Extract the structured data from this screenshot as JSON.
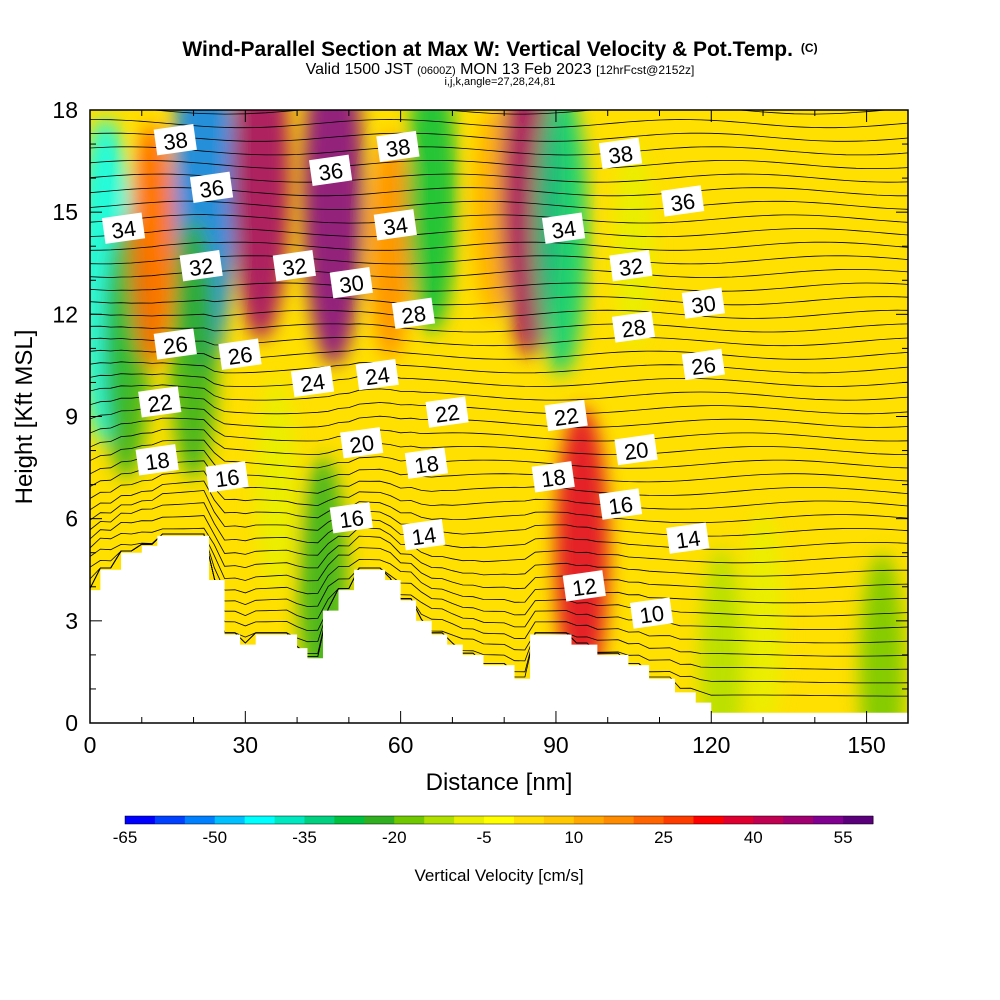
{
  "header": {
    "title": "Wind-Parallel Section at Max W: Vertical Velocity & Pot.Temp.",
    "copyright": "(C)",
    "valid_prefix": "Valid 1500 JST",
    "valid_utc": "(0600Z)",
    "valid_date": "MON 13 Feb 2023",
    "forecast": "[12hrFcst@2152z]",
    "index_line": "i,j,k,angle=27,28,24,81"
  },
  "chart_data": {
    "type": "heatmap",
    "xlabel": "Distance [nm]",
    "ylabel": "Height [Kft MSL]",
    "xlim": [
      0,
      158
    ],
    "ylim": [
      0,
      18
    ],
    "x_ticks": [
      0,
      30,
      60,
      90,
      120,
      150
    ],
    "y_ticks": [
      0,
      3,
      6,
      9,
      12,
      15,
      18
    ],
    "grid": false,
    "colorbar": {
      "label": "Vertical Velocity [cm/s]",
      "tick_labels": [
        "-65",
        "-50",
        "-35",
        "-20",
        "-5",
        "10",
        "25",
        "40",
        "55"
      ],
      "range": [
        -65,
        60
      ],
      "step": 5,
      "colors": [
        "#0000ff",
        "#0040ff",
        "#0080ff",
        "#00c0ff",
        "#00ffff",
        "#00e8c0",
        "#00d080",
        "#00c040",
        "#30b020",
        "#70c800",
        "#b0e000",
        "#e8f000",
        "#ffff00",
        "#ffe000",
        "#ffc800",
        "#ffa800",
        "#ff8c00",
        "#ff6400",
        "#ff3c00",
        "#ff0000",
        "#e00030",
        "#c00050",
        "#a00070",
        "#800090",
        "#5a007a"
      ]
    },
    "terrain_profile": [
      [
        0,
        3.9
      ],
      [
        2,
        3.9
      ],
      [
        2,
        4.5
      ],
      [
        6,
        4.5
      ],
      [
        6,
        5
      ],
      [
        10,
        5
      ],
      [
        10,
        5.2
      ],
      [
        13,
        5.2
      ],
      [
        13,
        5.5
      ],
      [
        23,
        5.5
      ],
      [
        23,
        4.2
      ],
      [
        26,
        4.2
      ],
      [
        26,
        2.6
      ],
      [
        29,
        2.6
      ],
      [
        29,
        2.3
      ],
      [
        32,
        2.3
      ],
      [
        32,
        2.6
      ],
      [
        40,
        2.6
      ],
      [
        40,
        2.2
      ],
      [
        42,
        2.2
      ],
      [
        42,
        1.9
      ],
      [
        45,
        1.9
      ],
      [
        45,
        3.3
      ],
      [
        48,
        3.3
      ],
      [
        48,
        3.9
      ],
      [
        51,
        3.9
      ],
      [
        51,
        4.5
      ],
      [
        57,
        4.5
      ],
      [
        57,
        4.2
      ],
      [
        60,
        4.2
      ],
      [
        60,
        3.6
      ],
      [
        63,
        3.6
      ],
      [
        63,
        3.0
      ],
      [
        66,
        3.0
      ],
      [
        66,
        2.6
      ],
      [
        69,
        2.6
      ],
      [
        69,
        2.3
      ],
      [
        72,
        2.3
      ],
      [
        72,
        2.0
      ],
      [
        76,
        2.0
      ],
      [
        76,
        1.7
      ],
      [
        82,
        1.7
      ],
      [
        82,
        1.3
      ],
      [
        85,
        1.3
      ],
      [
        85,
        2.6
      ],
      [
        93,
        2.6
      ],
      [
        93,
        2.3
      ],
      [
        98,
        2.3
      ],
      [
        98,
        2.0
      ],
      [
        104,
        2.0
      ],
      [
        104,
        1.7
      ],
      [
        108,
        1.7
      ],
      [
        108,
        1.3
      ],
      [
        113,
        1.3
      ],
      [
        113,
        0.9
      ],
      [
        117,
        0.9
      ],
      [
        117,
        0.6
      ],
      [
        120,
        0.6
      ],
      [
        120,
        0.3
      ],
      [
        158,
        0.3
      ]
    ],
    "series": [
      {
        "name": "Vertical Velocity [cm/s]",
        "type": "heatmap",
        "features": [
          {
            "x": 3,
            "y": 13,
            "value": -45
          },
          {
            "x": 7,
            "y": 11,
            "value": -25
          },
          {
            "x": 22,
            "y": 15.5,
            "value": -55
          },
          {
            "x": 20,
            "y": 11,
            "value": -25
          },
          {
            "x": 12,
            "y": 14,
            "value": 20
          },
          {
            "x": 33,
            "y": 16,
            "value": 45
          },
          {
            "x": 47,
            "y": 15.5,
            "value": 50
          },
          {
            "x": 58,
            "y": 14,
            "value": 15
          },
          {
            "x": 66,
            "y": 15.5,
            "value": -30
          },
          {
            "x": 78,
            "y": 15,
            "value": 10
          },
          {
            "x": 85,
            "y": 15.5,
            "value": 45
          },
          {
            "x": 91,
            "y": 14.5,
            "value": -35
          },
          {
            "x": 95,
            "y": 5,
            "value": 35
          },
          {
            "x": 45,
            "y": 4,
            "value": -25
          },
          {
            "x": 36,
            "y": 7,
            "value": -10
          },
          {
            "x": 105,
            "y": 14,
            "value": -8
          },
          {
            "x": 130,
            "y": 3,
            "value": -12
          },
          {
            "x": 122,
            "y": 1.8,
            "value": -15
          },
          {
            "x": 153,
            "y": 1.5,
            "value": -18
          }
        ]
      }
    ],
    "contour_labels": [
      {
        "text": "38",
        "x": 16.5,
        "y": 17.1
      },
      {
        "text": "38",
        "x": 59.5,
        "y": 16.9
      },
      {
        "text": "38",
        "x": 102.5,
        "y": 16.7
      },
      {
        "text": "36",
        "x": 23.5,
        "y": 15.7
      },
      {
        "text": "36",
        "x": 46.5,
        "y": 16.2
      },
      {
        "text": "36",
        "x": 114.5,
        "y": 15.3
      },
      {
        "text": "34",
        "x": 6.5,
        "y": 14.5
      },
      {
        "text": "34",
        "x": 59,
        "y": 14.6
      },
      {
        "text": "34",
        "x": 91.5,
        "y": 14.5
      },
      {
        "text": "32",
        "x": 21.5,
        "y": 13.4
      },
      {
        "text": "32",
        "x": 39.5,
        "y": 13.4
      },
      {
        "text": "32",
        "x": 104.5,
        "y": 13.4
      },
      {
        "text": "30",
        "x": 50.5,
        "y": 12.9
      },
      {
        "text": "30",
        "x": 118.5,
        "y": 12.3
      },
      {
        "text": "28",
        "x": 62.5,
        "y": 12.0
      },
      {
        "text": "28",
        "x": 105,
        "y": 11.6
      },
      {
        "text": "26",
        "x": 16.5,
        "y": 11.1
      },
      {
        "text": "26",
        "x": 29,
        "y": 10.8
      },
      {
        "text": "26",
        "x": 118.5,
        "y": 10.5
      },
      {
        "text": "24",
        "x": 43,
        "y": 10.0
      },
      {
        "text": "24",
        "x": 55.5,
        "y": 10.2
      },
      {
        "text": "22",
        "x": 13.5,
        "y": 9.4
      },
      {
        "text": "22",
        "x": 69,
        "y": 9.1
      },
      {
        "text": "22",
        "x": 92,
        "y": 9.0
      },
      {
        "text": "20",
        "x": 52.5,
        "y": 8.2
      },
      {
        "text": "20",
        "x": 105.5,
        "y": 8.0
      },
      {
        "text": "18",
        "x": 13,
        "y": 7.7
      },
      {
        "text": "18",
        "x": 65,
        "y": 7.6
      },
      {
        "text": "18",
        "x": 89.5,
        "y": 7.2
      },
      {
        "text": "16",
        "x": 26.5,
        "y": 7.2
      },
      {
        "text": "16",
        "x": 50.5,
        "y": 6.0
      },
      {
        "text": "16",
        "x": 102.5,
        "y": 6.4
      },
      {
        "text": "14",
        "x": 64.5,
        "y": 5.5
      },
      {
        "text": "14",
        "x": 115.5,
        "y": 5.4
      },
      {
        "text": "12",
        "x": 95.5,
        "y": 4.0
      },
      {
        "text": "10",
        "x": 108.5,
        "y": 3.2
      }
    ]
  }
}
